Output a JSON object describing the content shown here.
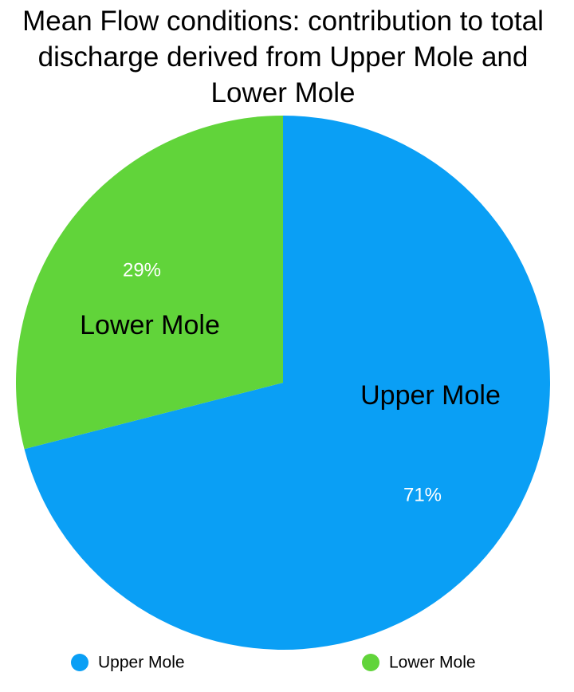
{
  "chart_data": {
    "type": "pie",
    "title": "Mean Flow conditions: contribution to total discharge derived from Upper Mole and Lower Mole",
    "categories": [
      "Upper Mole",
      "Lower Mole"
    ],
    "values": [
      71,
      29
    ],
    "value_labels": [
      "71%",
      "29%"
    ],
    "colors": [
      "#0a9ff5",
      "#61d43a"
    ]
  }
}
